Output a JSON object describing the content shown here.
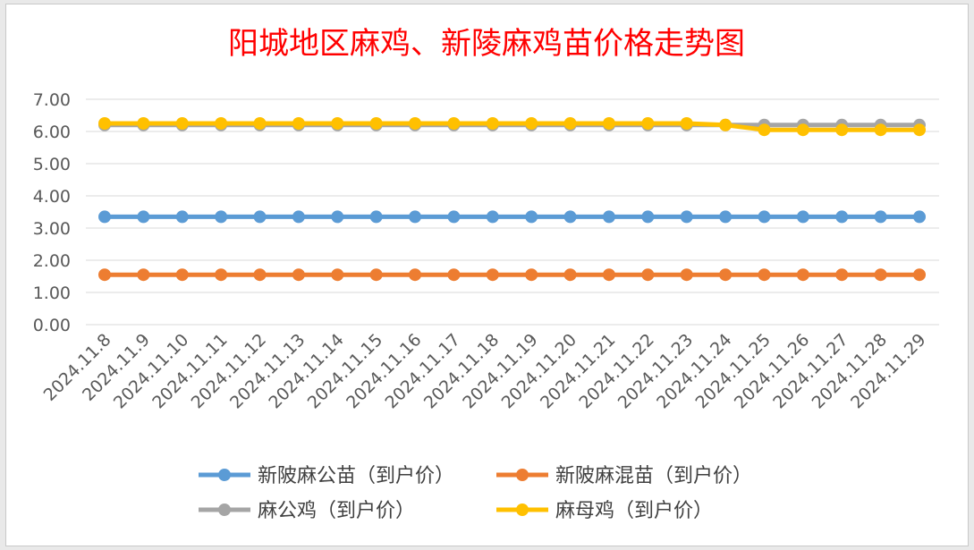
{
  "chart_data": {
    "type": "line",
    "title": "阳城地区麻鸡、新陵麻鸡苗价格走势图",
    "categories": [
      "2024.11.8",
      "2024.11.9",
      "2024.11.10",
      "2024.11.11",
      "2024.11.12",
      "2024.11.13",
      "2024.11.14",
      "2024.11.15",
      "2024.11.16",
      "2024.11.17",
      "2024.11.18",
      "2024.11.19",
      "2024.11.20",
      "2024.11.21",
      "2024.11.22",
      "2024.11.23",
      "2024.11.24",
      "2024.11.25",
      "2024.11.26",
      "2024.11.27",
      "2024.11.28",
      "2024.11.29"
    ],
    "y_ticks": [
      "7.00",
      "6.00",
      "5.00",
      "4.00",
      "3.00",
      "2.00",
      "1.00",
      "0.00"
    ],
    "ylim": [
      0,
      7
    ],
    "grid": true,
    "legend_position": "bottom",
    "series": [
      {
        "name": "新陂麻公苗（到户价）",
        "color": "#5b9bd5",
        "values": [
          3.35,
          3.35,
          3.35,
          3.35,
          3.35,
          3.35,
          3.35,
          3.35,
          3.35,
          3.35,
          3.35,
          3.35,
          3.35,
          3.35,
          3.35,
          3.35,
          3.35,
          3.35,
          3.35,
          3.35,
          3.35,
          3.35
        ]
      },
      {
        "name": "新陂麻混苗（到户价）",
        "color": "#ed7d31",
        "values": [
          1.55,
          1.55,
          1.55,
          1.55,
          1.55,
          1.55,
          1.55,
          1.55,
          1.55,
          1.55,
          1.55,
          1.55,
          1.55,
          1.55,
          1.55,
          1.55,
          1.55,
          1.55,
          1.55,
          1.55,
          1.55,
          1.55
        ]
      },
      {
        "name": "麻公鸡（到户价）",
        "color": "#a5a5a5",
        "values": [
          6.2,
          6.2,
          6.2,
          6.2,
          6.2,
          6.2,
          6.2,
          6.2,
          6.2,
          6.2,
          6.2,
          6.2,
          6.2,
          6.2,
          6.2,
          6.2,
          6.2,
          6.2,
          6.2,
          6.2,
          6.2,
          6.2
        ]
      },
      {
        "name": "麻母鸡（到户价）",
        "color": "#ffc000",
        "values": [
          6.25,
          6.25,
          6.25,
          6.25,
          6.25,
          6.25,
          6.25,
          6.25,
          6.25,
          6.25,
          6.25,
          6.25,
          6.25,
          6.25,
          6.25,
          6.25,
          6.2,
          6.05,
          6.05,
          6.05,
          6.05,
          6.05
        ]
      }
    ]
  }
}
